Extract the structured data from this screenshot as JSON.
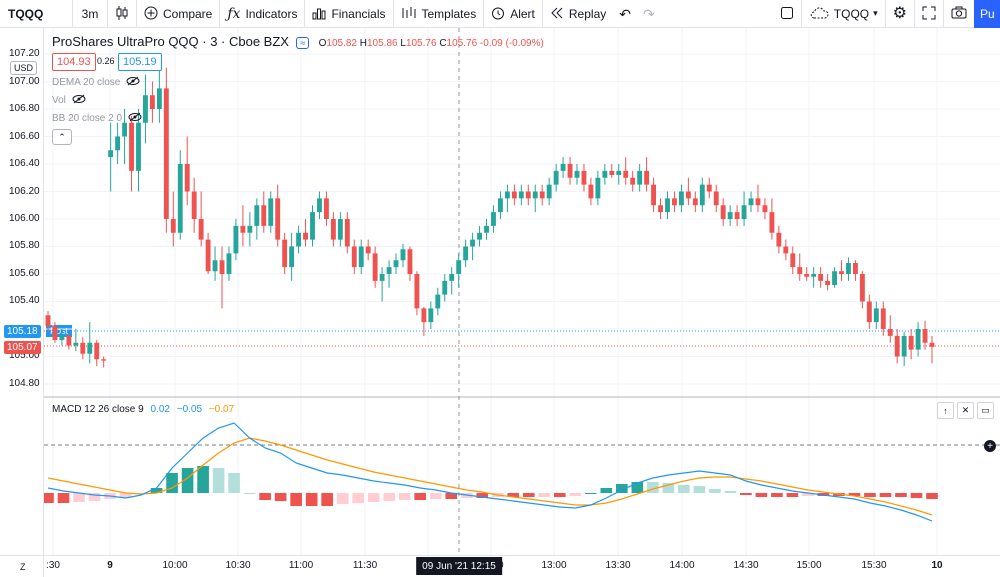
{
  "toolbar": {
    "symbol": "TQQQ",
    "interval": "3m",
    "compare": "Compare",
    "indicators": "Indicators",
    "financials": "Financials",
    "templates": "Templates",
    "alert": "Alert",
    "replay": "Replay",
    "layout_name": "TQQQ",
    "publish": "Pu",
    "icons": {
      "candles": "candlestick-icon",
      "compare": "plus-circle-icon",
      "indicators": "function-icon",
      "financials": "bars-icon",
      "templates": "templates-icon",
      "alert": "alarm-clock-icon",
      "replay": "rewind-icon",
      "undo": "undo-icon",
      "redo": "redo-icon",
      "layout": "square-icon",
      "cloud": "cloud-icon",
      "settings": "gear-icon",
      "fullscreen": "fullscreen-icon",
      "snapshot": "camera-icon"
    }
  },
  "legend": {
    "title": "ProShares UltraPro QQQ · 3 · Cboe BZX",
    "o_label": "O",
    "o_value": "105.82",
    "h_label": "H",
    "h_value": "105.86",
    "l_label": "L",
    "l_value": "105.76",
    "c_label": "C",
    "c_value": "105.76",
    "change": "-0.09 (-0.09%)",
    "bid": "104.93",
    "spread": "0.26",
    "ask": "105.19",
    "indicators": [
      {
        "label": "DEMA 20 close"
      },
      {
        "label": "Vol"
      },
      {
        "label": "BB 20 close 2 0"
      }
    ]
  },
  "left_axis": {
    "currency": "USD",
    "ticks": [
      "107.20",
      "107.00",
      "106.80",
      "106.60",
      "106.40",
      "106.20",
      "106.00",
      "105.80",
      "105.60",
      "105.40",
      "105.00",
      "104.80"
    ],
    "last_price": "105.18",
    "post_label": "Post",
    "close_price": "105.07"
  },
  "macd": {
    "label": "MACD 12 26 close 9",
    "v1": "0.02",
    "v2": "−0.05",
    "v3": "−0.07"
  },
  "time_axis": {
    "ticks": [
      ":30",
      "9",
      "10:00",
      "10:30",
      "11:00",
      "11:30",
      "12:00",
      "13:00",
      "13:30",
      "14:00",
      "14:30",
      "15:00",
      "15:30",
      "10"
    ],
    "cursor": "09 Jun '21   12:15"
  },
  "colors": {
    "up": "#26a69a",
    "down": "#ef5350",
    "macd_line": "#2196f3",
    "signal_line": "#ff9800",
    "hist_up_strong": "#26a69a",
    "hist_up_weak": "#b2dfdb",
    "hist_down_strong": "#ef5350",
    "hist_down_weak": "#ffcdd2"
  },
  "chart_data": {
    "type": "candlestick",
    "ylim": [
      104.7,
      107.25
    ],
    "candles": [
      [
        105.3,
        105.33,
        105.18,
        105.22
      ],
      [
        105.22,
        105.25,
        105.1,
        105.12
      ],
      [
        105.12,
        105.2,
        105.08,
        105.15
      ],
      [
        105.15,
        105.17,
        105.05,
        105.08
      ],
      [
        105.08,
        105.2,
        105.04,
        105.1
      ],
      [
        105.1,
        105.14,
        104.98,
        105.02
      ],
      [
        105.02,
        105.25,
        104.95,
        105.1
      ],
      [
        105.1,
        105.12,
        104.93,
        104.98
      ],
      [
        104.98,
        105.0,
        104.92,
        104.97
      ],
      [
        106.45,
        106.7,
        106.2,
        106.5
      ],
      [
        106.5,
        106.7,
        106.4,
        106.6
      ],
      [
        106.6,
        106.8,
        106.4,
        106.7
      ],
      [
        106.7,
        106.75,
        106.2,
        106.35
      ],
      [
        106.35,
        106.8,
        106.2,
        106.7
      ],
      [
        106.7,
        107.05,
        106.55,
        106.9
      ],
      [
        106.9,
        107.0,
        106.7,
        106.8
      ],
      [
        106.8,
        107.2,
        106.7,
        106.95
      ],
      [
        106.95,
        107.1,
        105.9,
        106.0
      ],
      [
        106.0,
        106.2,
        105.8,
        105.9
      ],
      [
        105.9,
        106.5,
        105.85,
        106.4
      ],
      [
        106.4,
        106.6,
        106.1,
        106.2
      ],
      [
        106.2,
        106.3,
        105.9,
        106.0
      ],
      [
        106.0,
        106.2,
        105.8,
        105.85
      ],
      [
        105.85,
        105.9,
        105.6,
        105.62
      ],
      [
        105.62,
        105.8,
        105.55,
        105.7
      ],
      [
        105.7,
        105.8,
        105.35,
        105.6
      ],
      [
        105.6,
        105.8,
        105.55,
        105.75
      ],
      [
        105.75,
        106.0,
        105.7,
        105.95
      ],
      [
        105.95,
        106.1,
        105.8,
        105.9
      ],
      [
        105.9,
        106.05,
        105.8,
        105.95
      ],
      [
        105.95,
        106.15,
        105.85,
        106.1
      ],
      [
        106.1,
        106.2,
        105.9,
        105.95
      ],
      [
        105.95,
        106.2,
        105.9,
        106.15
      ],
      [
        106.15,
        106.25,
        105.8,
        105.85
      ],
      [
        105.85,
        105.9,
        105.6,
        105.65
      ],
      [
        105.65,
        105.9,
        105.55,
        105.8
      ],
      [
        105.8,
        105.95,
        105.75,
        105.9
      ],
      [
        105.9,
        106.0,
        105.8,
        105.85
      ],
      [
        105.85,
        106.1,
        105.8,
        106.05
      ],
      [
        106.05,
        106.2,
        106.0,
        106.15
      ],
      [
        106.15,
        106.2,
        105.95,
        106.0
      ],
      [
        106.0,
        106.05,
        105.8,
        105.85
      ],
      [
        105.85,
        106.05,
        105.8,
        106.0
      ],
      [
        106.0,
        106.05,
        105.75,
        105.8
      ],
      [
        105.8,
        105.85,
        105.6,
        105.65
      ],
      [
        105.65,
        105.85,
        105.6,
        105.8
      ],
      [
        105.8,
        105.85,
        105.7,
        105.75
      ],
      [
        105.75,
        105.8,
        105.5,
        105.55
      ],
      [
        105.55,
        105.65,
        105.4,
        105.6
      ],
      [
        105.6,
        105.7,
        105.5,
        105.65
      ],
      [
        105.65,
        105.75,
        105.6,
        105.7
      ],
      [
        105.7,
        105.82,
        105.65,
        105.78
      ],
      [
        105.78,
        105.8,
        105.55,
        105.6
      ],
      [
        105.6,
        105.62,
        105.3,
        105.35
      ],
      [
        105.35,
        105.36,
        105.15,
        105.25
      ],
      [
        105.25,
        105.4,
        105.2,
        105.35
      ],
      [
        105.35,
        105.5,
        105.3,
        105.45
      ],
      [
        105.45,
        105.6,
        105.4,
        105.55
      ],
      [
        105.55,
        105.65,
        105.45,
        105.6
      ],
      [
        105.6,
        105.75,
        105.5,
        105.7
      ],
      [
        105.7,
        105.85,
        105.65,
        105.8
      ],
      [
        105.8,
        105.9,
        105.7,
        105.85
      ],
      [
        105.85,
        105.95,
        105.8,
        105.9
      ],
      [
        105.9,
        106.0,
        105.85,
        105.95
      ],
      [
        105.95,
        106.1,
        105.9,
        106.05
      ],
      [
        106.05,
        106.2,
        106.0,
        106.15
      ],
      [
        106.15,
        106.25,
        106.05,
        106.2
      ],
      [
        106.2,
        106.25,
        106.1,
        106.15
      ],
      [
        106.15,
        106.25,
        106.1,
        106.2
      ],
      [
        106.2,
        106.25,
        106.1,
        106.15
      ],
      [
        106.15,
        106.25,
        106.05,
        106.2
      ],
      [
        106.2,
        106.25,
        106.1,
        106.15
      ],
      [
        106.15,
        106.3,
        106.1,
        106.25
      ],
      [
        106.25,
        106.4,
        106.2,
        106.35
      ],
      [
        106.35,
        106.45,
        106.3,
        106.4
      ],
      [
        106.4,
        106.45,
        106.25,
        106.3
      ],
      [
        106.3,
        106.4,
        106.25,
        106.35
      ],
      [
        106.35,
        106.4,
        106.2,
        106.25
      ],
      [
        106.25,
        106.3,
        106.1,
        106.15
      ],
      [
        106.15,
        106.35,
        106.1,
        106.3
      ],
      [
        106.3,
        106.4,
        106.25,
        106.35
      ],
      [
        106.35,
        106.4,
        106.3,
        106.32
      ],
      [
        106.32,
        106.4,
        106.25,
        106.35
      ],
      [
        106.35,
        106.45,
        106.25,
        106.3
      ],
      [
        106.3,
        106.35,
        106.2,
        106.25
      ],
      [
        106.25,
        106.4,
        106.2,
        106.35
      ],
      [
        106.35,
        106.45,
        106.2,
        106.25
      ],
      [
        106.25,
        106.3,
        106.05,
        106.1
      ],
      [
        106.1,
        106.15,
        106.0,
        106.05
      ],
      [
        106.05,
        106.2,
        106.0,
        106.15
      ],
      [
        106.15,
        106.2,
        106.05,
        106.1
      ],
      [
        106.1,
        106.25,
        106.05,
        106.2
      ],
      [
        106.2,
        106.3,
        106.1,
        106.15
      ],
      [
        106.15,
        106.2,
        106.05,
        106.1
      ],
      [
        106.1,
        106.3,
        106.05,
        106.25
      ],
      [
        106.25,
        106.3,
        106.15,
        106.2
      ],
      [
        106.2,
        106.25,
        106.05,
        106.1
      ],
      [
        106.1,
        106.15,
        105.95,
        106.0
      ],
      [
        106.0,
        106.1,
        105.95,
        106.05
      ],
      [
        106.05,
        106.1,
        105.95,
        106.0
      ],
      [
        106.0,
        106.2,
        105.95,
        106.1
      ],
      [
        106.1,
        106.2,
        106.05,
        106.15
      ],
      [
        106.15,
        106.25,
        106.05,
        106.1
      ],
      [
        106.1,
        106.15,
        106.0,
        106.05
      ],
      [
        106.05,
        106.15,
        105.85,
        105.9
      ],
      [
        105.9,
        105.95,
        105.75,
        105.8
      ],
      [
        105.8,
        105.85,
        105.7,
        105.75
      ],
      [
        105.75,
        105.8,
        105.6,
        105.65
      ],
      [
        105.65,
        105.75,
        105.55,
        105.6
      ],
      [
        105.6,
        105.65,
        105.55,
        105.58
      ],
      [
        105.58,
        105.65,
        105.5,
        105.6
      ],
      [
        105.6,
        105.65,
        105.5,
        105.55
      ],
      [
        105.55,
        105.6,
        105.48,
        105.52
      ],
      [
        105.52,
        105.65,
        105.5,
        105.62
      ],
      [
        105.62,
        105.7,
        105.55,
        105.6
      ],
      [
        105.6,
        105.72,
        105.55,
        105.68
      ],
      [
        105.68,
        105.7,
        105.55,
        105.6
      ],
      [
        105.6,
        105.62,
        105.35,
        105.4
      ],
      [
        105.4,
        105.45,
        105.2,
        105.25
      ],
      [
        105.25,
        105.4,
        105.2,
        105.35
      ],
      [
        105.35,
        105.4,
        105.15,
        105.2
      ],
      [
        105.2,
        105.3,
        105.1,
        105.15
      ],
      [
        105.15,
        105.2,
        104.95,
        105.0
      ],
      [
        105.0,
        105.18,
        104.93,
        105.15
      ],
      [
        105.15,
        105.2,
        104.98,
        105.05
      ],
      [
        105.05,
        105.25,
        105.0,
        105.2
      ],
      [
        105.2,
        105.26,
        105.05,
        105.1
      ],
      [
        105.1,
        105.15,
        104.95,
        105.07
      ]
    ],
    "macd_line": [
      0.05,
      0.02,
      0.0,
      -0.02,
      -0.03,
      -0.05,
      -0.02,
      0.05,
      0.25,
      0.4,
      0.55,
      0.65,
      0.7,
      0.55,
      0.45,
      0.4,
      0.3,
      0.25,
      0.2,
      0.18,
      0.15,
      0.12,
      0.1,
      0.08,
      0.05,
      0.03,
      0.0,
      -0.02,
      -0.04,
      -0.06,
      -0.08,
      -0.1,
      -0.12,
      -0.14,
      -0.15,
      -0.12,
      -0.05,
      0.03,
      0.1,
      0.15,
      0.18,
      0.2,
      0.22,
      0.2,
      0.18,
      0.12,
      0.08,
      0.05,
      0.02,
      0.0,
      -0.02,
      -0.04,
      -0.06,
      -0.1,
      -0.13,
      -0.17,
      -0.22,
      -0.28
    ],
    "signal_line": [
      0.15,
      0.12,
      0.09,
      0.06,
      0.03,
      0.0,
      -0.01,
      0.0,
      0.05,
      0.15,
      0.28,
      0.4,
      0.5,
      0.55,
      0.52,
      0.48,
      0.43,
      0.38,
      0.33,
      0.29,
      0.25,
      0.21,
      0.18,
      0.15,
      0.12,
      0.09,
      0.06,
      0.03,
      0.01,
      -0.02,
      -0.04,
      -0.06,
      -0.08,
      -0.1,
      -0.12,
      -0.12,
      -0.1,
      -0.06,
      -0.01,
      0.04,
      0.08,
      0.12,
      0.15,
      0.16,
      0.16,
      0.14,
      0.12,
      0.09,
      0.06,
      0.03,
      0.01,
      -0.01,
      -0.03,
      -0.06,
      -0.09,
      -0.13,
      -0.17,
      -0.22
    ],
    "macd_range": [
      -0.35,
      0.85
    ]
  }
}
